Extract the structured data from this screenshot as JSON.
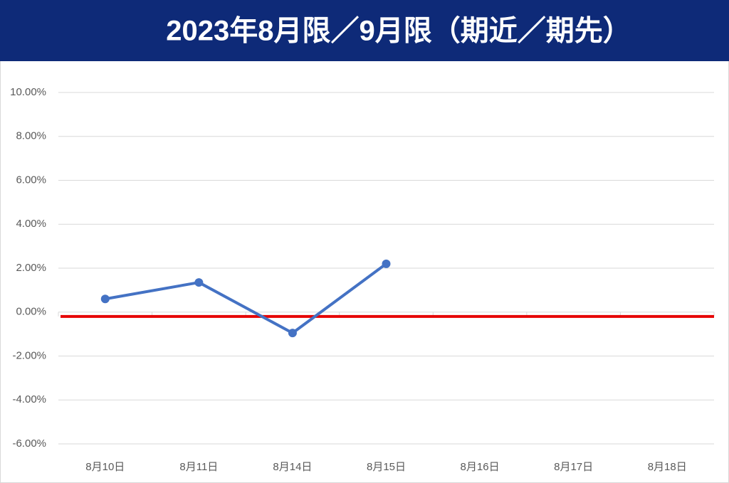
{
  "chart_data": {
    "type": "line",
    "title": "2023年8月限／9月限（期近／期先）",
    "categories": [
      "8月10日",
      "8月11日",
      "8月14日",
      "8月15日",
      "8月16日",
      "8月17日",
      "8月18日"
    ],
    "series": [
      {
        "color": "#4472c4",
        "values": [
          0.6,
          1.35,
          -0.95,
          2.2,
          null,
          null,
          null
        ]
      }
    ],
    "reference_line": {
      "value": -0.2,
      "color": "#e60000"
    },
    "ylim": [
      -6,
      10
    ],
    "yticks": [
      {
        "value": -6,
        "label": "-6.00%"
      },
      {
        "value": -4,
        "label": "-4.00%"
      },
      {
        "value": -2,
        "label": "-2.00%"
      },
      {
        "value": 0,
        "label": "0.00%"
      },
      {
        "value": 2,
        "label": "2.00%"
      },
      {
        "value": 4,
        "label": "4.00%"
      },
      {
        "value": 6,
        "label": "6.00%"
      },
      {
        "value": 8,
        "label": "8.00%"
      },
      {
        "value": 10,
        "label": "10.00%"
      }
    ],
    "grid": true
  }
}
